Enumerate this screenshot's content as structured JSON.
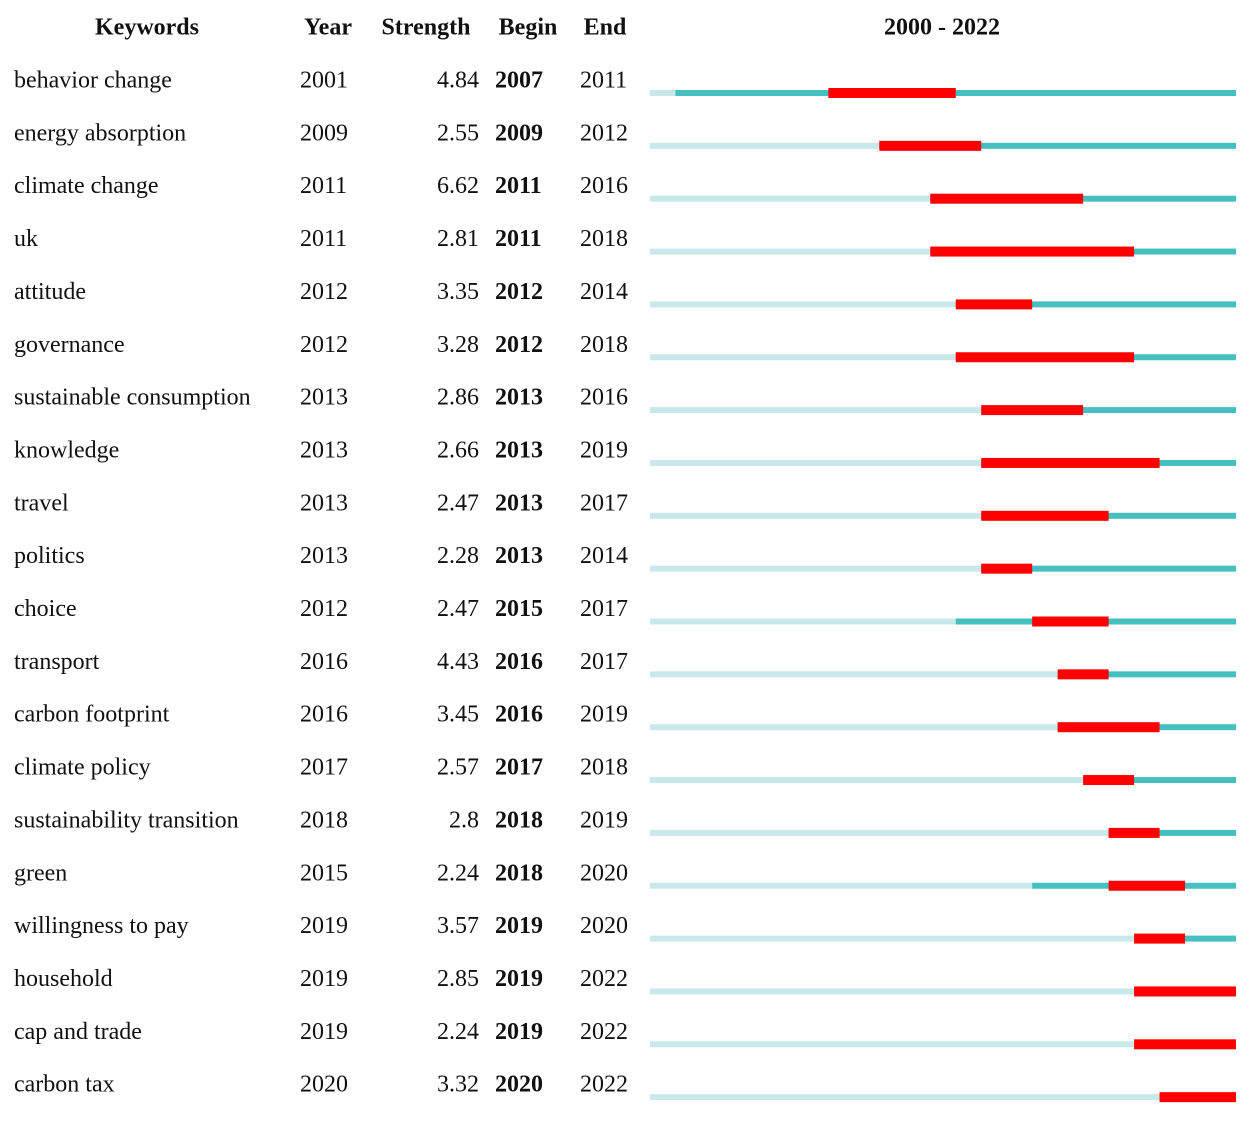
{
  "chart_data": {
    "type": "burst",
    "headers": [
      "Keywords",
      "Year",
      "Strength",
      "Begin",
      "End"
    ],
    "title": "2000 - 2022",
    "xlim": [
      2000,
      2022
    ],
    "colors": {
      "before": "#c9e8ea",
      "after": "#46bfc1",
      "burst": "#ff0000"
    },
    "categories": [
      "behavior change",
      "energy absorption",
      "climate change",
      "uk",
      "attitude",
      "governance",
      "sustainable consumption",
      "knowledge",
      "travel",
      "politics",
      "choice",
      "transport",
      "carbon footprint",
      "climate policy",
      "sustainability transition",
      "green",
      "willingness to pay",
      "household",
      "cap and trade",
      "carbon tax"
    ],
    "year": [
      2001,
      2009,
      2011,
      2011,
      2012,
      2012,
      2013,
      2013,
      2013,
      2013,
      2012,
      2016,
      2016,
      2017,
      2018,
      2015,
      2019,
      2019,
      2019,
      2020
    ],
    "strength": [
      4.84,
      2.55,
      6.62,
      2.81,
      3.35,
      3.28,
      2.86,
      2.66,
      2.47,
      2.28,
      2.47,
      4.43,
      3.45,
      2.57,
      2.8,
      2.24,
      3.57,
      2.85,
      2.24,
      3.32
    ],
    "begin": [
      2007,
      2009,
      2011,
      2011,
      2012,
      2012,
      2013,
      2013,
      2013,
      2013,
      2015,
      2016,
      2016,
      2017,
      2018,
      2018,
      2019,
      2019,
      2019,
      2020
    ],
    "end": [
      2011,
      2012,
      2016,
      2018,
      2014,
      2018,
      2016,
      2019,
      2017,
      2014,
      2017,
      2017,
      2019,
      2018,
      2019,
      2020,
      2020,
      2022,
      2022,
      2022
    ]
  }
}
